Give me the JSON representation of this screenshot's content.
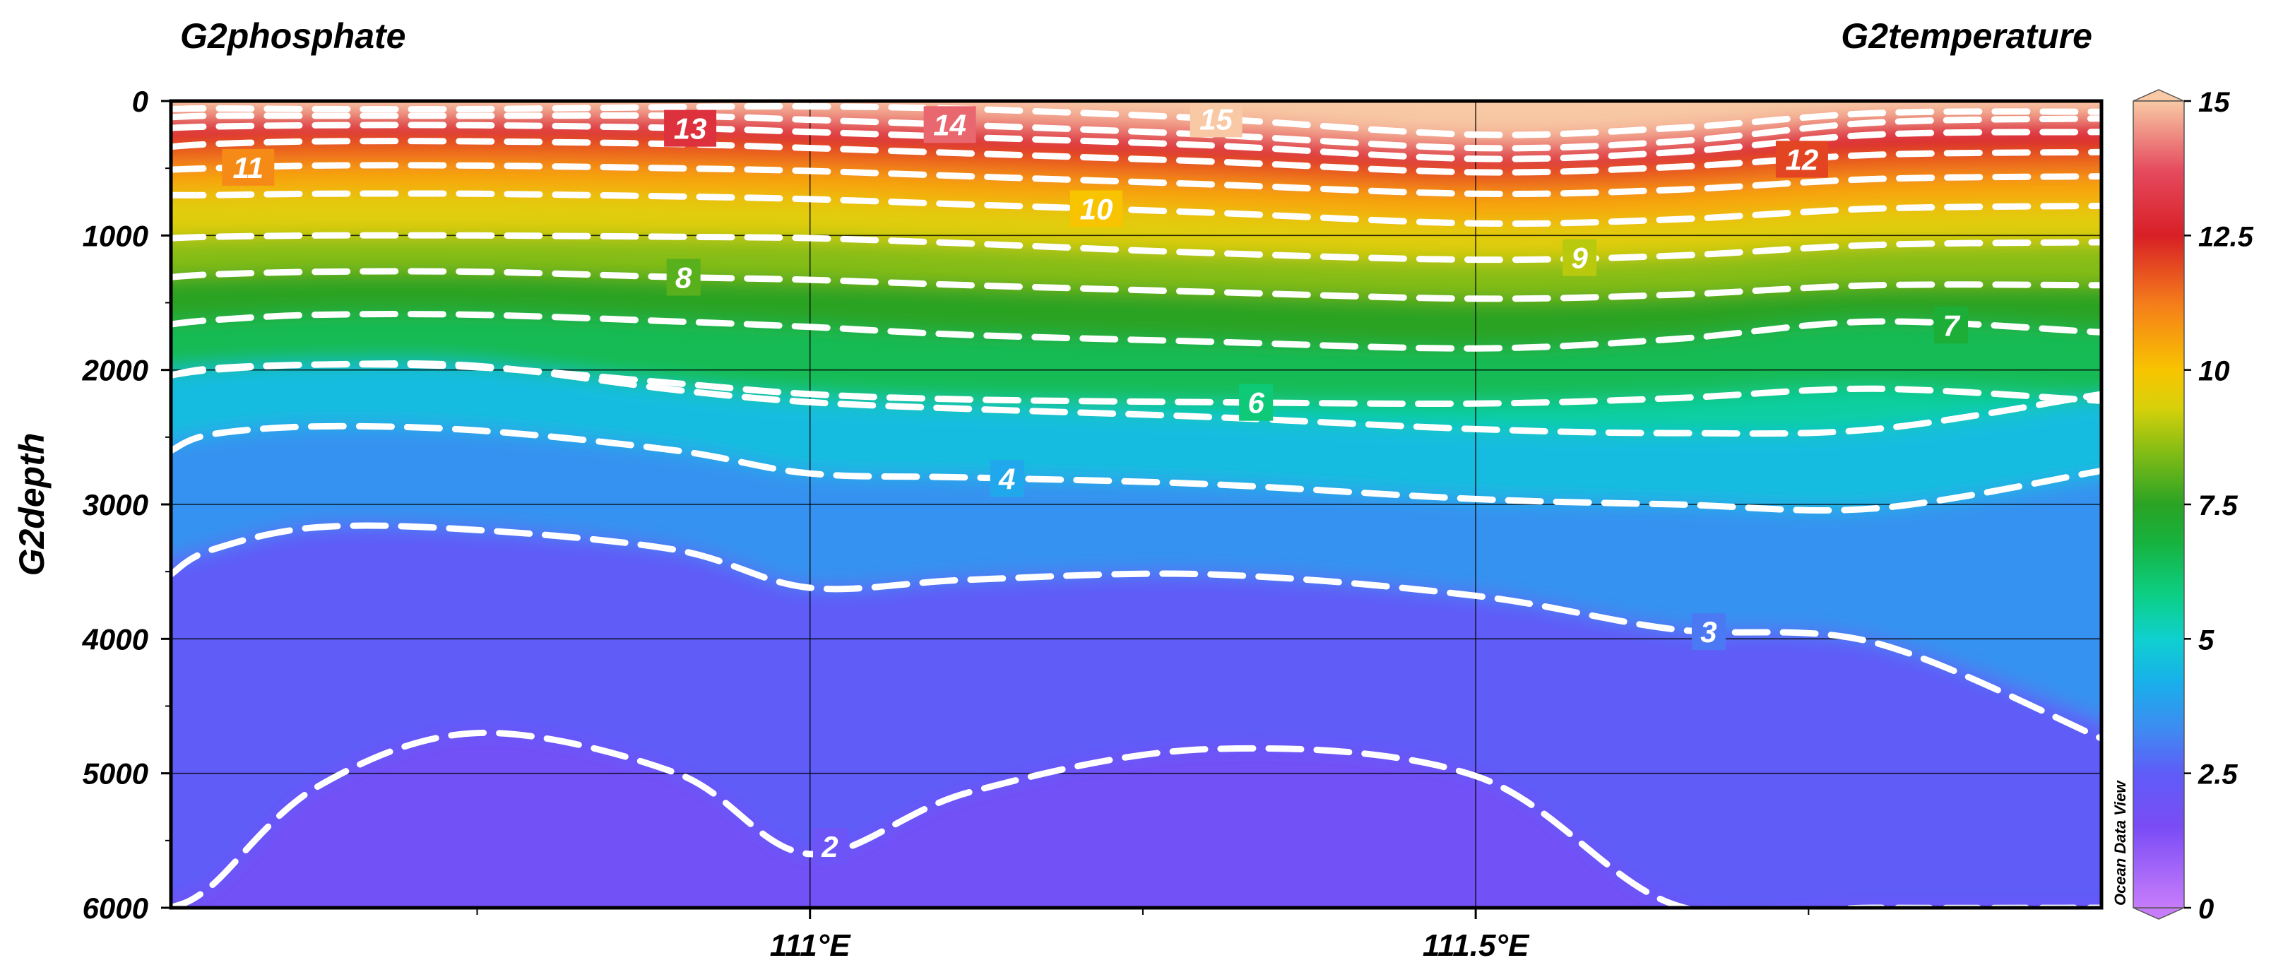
{
  "chart_data": {
    "type": "heatmap",
    "title_left": "G2phosphate",
    "title_right": "G2temperature",
    "ylabel": "G2depth",
    "xlabel": "",
    "watermark": "Ocean Data View",
    "xlim": [
      110.52,
      111.97
    ],
    "ylim": [
      0,
      6000
    ],
    "y_inverted": true,
    "xticks": [
      {
        "value": 111.0,
        "label": "111°E"
      },
      {
        "value": 111.5,
        "label": "111.5°E"
      }
    ],
    "yticks": [
      {
        "value": 0,
        "label": "0"
      },
      {
        "value": 1000,
        "label": "1000"
      },
      {
        "value": 2000,
        "label": "2000"
      },
      {
        "value": 3000,
        "label": "3000"
      },
      {
        "value": 4000,
        "label": "4000"
      },
      {
        "value": 5000,
        "label": "5000"
      },
      {
        "value": 6000,
        "label": "6000"
      }
    ],
    "grid": true,
    "colorbar": {
      "position": "right",
      "range": [
        0,
        15
      ],
      "ticks": [
        {
          "value": 0,
          "label": "0"
        },
        {
          "value": 2.5,
          "label": "2.5"
        },
        {
          "value": 5,
          "label": "5"
        },
        {
          "value": 7.5,
          "label": "7.5"
        },
        {
          "value": 10,
          "label": "10"
        },
        {
          "value": 12.5,
          "label": "12.5"
        },
        {
          "value": 15,
          "label": "15"
        }
      ],
      "stops": [
        {
          "value": 0,
          "color": "#c77dfa"
        },
        {
          "value": 1.5,
          "color": "#7a4cf6"
        },
        {
          "value": 2.5,
          "color": "#5f5cf8"
        },
        {
          "value": 3.3,
          "color": "#3f8af2"
        },
        {
          "value": 4.2,
          "color": "#18b0ea"
        },
        {
          "value": 5,
          "color": "#0fd0cf"
        },
        {
          "value": 5.8,
          "color": "#0ccf86"
        },
        {
          "value": 6.8,
          "color": "#17b23e"
        },
        {
          "value": 7.5,
          "color": "#2aa324"
        },
        {
          "value": 8.5,
          "color": "#86bd14"
        },
        {
          "value": 9.3,
          "color": "#d8d10a"
        },
        {
          "value": 10,
          "color": "#f8c400"
        },
        {
          "value": 11.2,
          "color": "#f57f1a"
        },
        {
          "value": 12.5,
          "color": "#d81f26"
        },
        {
          "value": 13.7,
          "color": "#e54a5e"
        },
        {
          "value": 15,
          "color": "#f8c9a4"
        }
      ]
    },
    "contour_x": [
      110.52,
      110.55,
      110.63,
      110.75,
      110.9,
      111.0,
      111.12,
      111.3,
      111.5,
      111.65,
      111.8,
      111.97
    ],
    "contours": [
      {
        "level": 15,
        "label": "15",
        "label_x": 111.305,
        "depths": [
          60,
          55,
          60,
          60,
          45,
          40,
          60,
          130,
          250,
          200,
          90,
          80
        ]
      },
      {
        "level": 14,
        "label": "14",
        "label_x": 111.105,
        "depths": [
          120,
          110,
          110,
          110,
          110,
          140,
          180,
          250,
          350,
          300,
          160,
          130
        ]
      },
      {
        "level": 13,
        "label": "13",
        "label_x": 110.91,
        "depths": [
          200,
          190,
          180,
          180,
          200,
          230,
          270,
          330,
          430,
          380,
          250,
          230
        ]
      },
      {
        "level": 12,
        "label": "12",
        "label_x": 111.745,
        "depths": [
          340,
          320,
          300,
          300,
          320,
          350,
          390,
          450,
          530,
          490,
          400,
          380
        ]
      },
      {
        "level": 11,
        "label": "11",
        "label_x": 110.578,
        "depths": [
          510,
          500,
          480,
          480,
          500,
          520,
          560,
          620,
          690,
          660,
          580,
          560
        ]
      },
      {
        "level": 10,
        "label": "10",
        "label_x": 111.215,
        "depths": [
          700,
          700,
          690,
          690,
          710,
          730,
          770,
          830,
          910,
          880,
          800,
          780
        ]
      },
      {
        "level": 9,
        "label": "9",
        "label_x": 111.578,
        "depths": [
          1020,
          1010,
          1000,
          1000,
          1010,
          1020,
          1060,
          1130,
          1180,
          1150,
          1070,
          1050
        ]
      },
      {
        "level": 8,
        "label": "8",
        "label_x": 110.905,
        "depths": [
          1310,
          1290,
          1270,
          1270,
          1310,
          1330,
          1370,
          1420,
          1470,
          1440,
          1370,
          1370
        ]
      },
      {
        "level": 7,
        "label": "7",
        "label_x": 111.857,
        "depths": [
          1660,
          1630,
          1590,
          1590,
          1640,
          1680,
          1740,
          1790,
          1840,
          1770,
          1640,
          1720
        ]
      },
      {
        "level": 6,
        "label": "6",
        "label_x": 111.335,
        "depths": [
          2040,
          2000,
          1960,
          1980,
          2100,
          2180,
          2220,
          2240,
          2250,
          2210,
          2140,
          2230
        ]
      },
      {
        "level": 5,
        "label": "",
        "label_x": null,
        "depths": [
          2040,
          1990,
          1960,
          1970,
          2150,
          2240,
          2290,
          2350,
          2440,
          2470,
          2440,
          2180
        ]
      },
      {
        "level": 4,
        "label": "4",
        "label_x": 111.148,
        "depths": [
          2600,
          2480,
          2420,
          2450,
          2600,
          2770,
          2800,
          2850,
          2960,
          3000,
          3030,
          2750
        ]
      },
      {
        "level": 3,
        "label": "3",
        "label_x": 111.675,
        "depths": [
          3520,
          3340,
          3170,
          3190,
          3340,
          3620,
          3560,
          3520,
          3680,
          3930,
          4030,
          4740
        ]
      },
      {
        "level": 2,
        "label": "2",
        "label_x": 111.015,
        "depths": [
          6000,
          5840,
          5100,
          4700,
          5000,
          5600,
          5140,
          4820,
          5020,
          5980,
          6000,
          6000
        ]
      }
    ]
  }
}
